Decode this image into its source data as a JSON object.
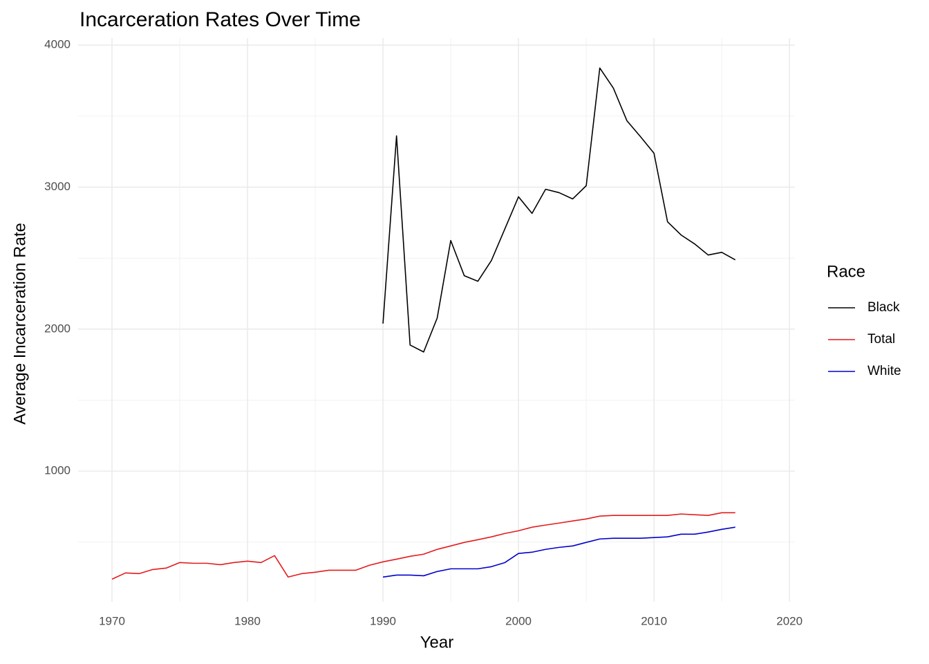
{
  "chart_data": {
    "type": "line",
    "title": "Incarceration Rates Over Time",
    "x_label": "Year",
    "y_label": "Average Incarceration Rate",
    "legend_title": "Race",
    "legend_position": "right",
    "grid": true,
    "xlim": [
      1967.5,
      2020.4
    ],
    "ylim": [
      80,
      4050
    ],
    "xticks": [
      1970,
      1980,
      1990,
      2000,
      2010,
      2020
    ],
    "yticks": [
      1000,
      2000,
      3000,
      4000
    ],
    "xminor": [
      1975,
      1985,
      1995,
      2005,
      2015
    ],
    "yminor": [
      500,
      1500,
      2500,
      3500
    ],
    "x": [
      1970,
      1971,
      1972,
      1973,
      1974,
      1975,
      1976,
      1977,
      1978,
      1979,
      1980,
      1981,
      1982,
      1983,
      1984,
      1985,
      1986,
      1987,
      1988,
      1989,
      1990,
      1991,
      1992,
      1993,
      1994,
      1995,
      1996,
      1997,
      1998,
      1999,
      2000,
      2001,
      2002,
      2003,
      2004,
      2005,
      2006,
      2007,
      2008,
      2009,
      2010,
      2011,
      2012,
      2013,
      2014,
      2015,
      2016
    ],
    "series": [
      {
        "name": "Black",
        "color": "#000000",
        "values": [
          null,
          null,
          null,
          null,
          null,
          null,
          null,
          null,
          null,
          null,
          null,
          null,
          null,
          null,
          null,
          null,
          null,
          null,
          null,
          null,
          2039,
          3361,
          1888,
          1839,
          2078,
          2624,
          2376,
          2337,
          2483,
          2707,
          2932,
          2815,
          2985,
          2961,
          2917,
          3010,
          3839,
          3698,
          3468,
          3356,
          3239,
          2756,
          2663,
          2600,
          2522,
          2541,
          2488
        ]
      },
      {
        "name": "Total",
        "color": "#e41a1c",
        "values": [
          239,
          283,
          278,
          307,
          317,
          356,
          351,
          351,
          341,
          356,
          366,
          356,
          405,
          254,
          278,
          288,
          302,
          302,
          302,
          337,
          361,
          380,
          400,
          415,
          449,
          473,
          498,
          517,
          537,
          561,
          580,
          605,
          620,
          634,
          649,
          663,
          683,
          688,
          688,
          688,
          688,
          688,
          698,
          693,
          688,
          707,
          707
        ]
      },
      {
        "name": "White",
        "color": "#0000cc",
        "values": [
          null,
          null,
          null,
          null,
          null,
          null,
          null,
          null,
          null,
          null,
          null,
          null,
          null,
          null,
          null,
          null,
          null,
          null,
          null,
          null,
          254,
          268,
          268,
          263,
          293,
          312,
          312,
          312,
          327,
          356,
          420,
          429,
          449,
          463,
          473,
          498,
          522,
          527,
          527,
          527,
          532,
          537,
          556,
          556,
          571,
          590,
          605
        ]
      }
    ]
  }
}
